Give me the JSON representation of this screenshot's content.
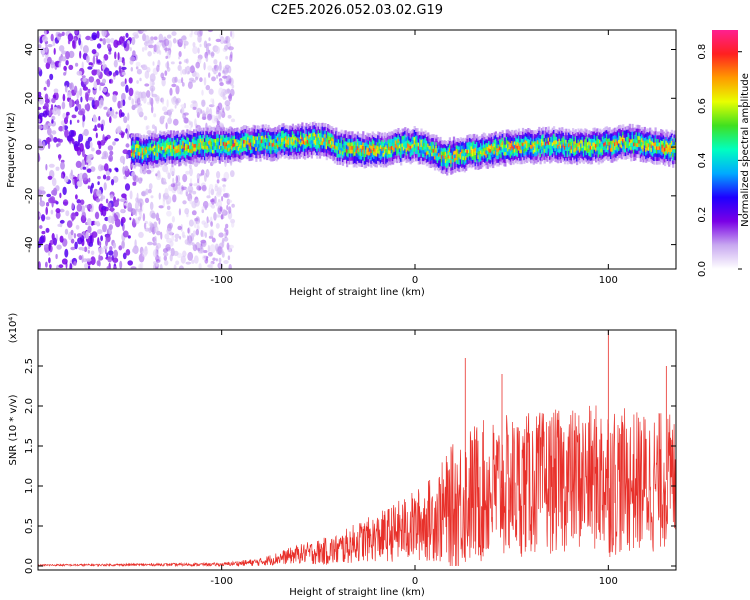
{
  "chart_data": [
    {
      "type": "heatmap",
      "title": "C2E5.2026.052.03.02.G19",
      "xlabel": "Height of straight line (km)",
      "ylabel": "Frequency (Hz)",
      "xlim": [
        -195,
        135
      ],
      "ylim": [
        -50,
        48
      ],
      "xticks": [
        -100,
        0,
        100
      ],
      "yticks": [
        -40,
        -20,
        0,
        20,
        40
      ],
      "colorbar": {
        "label": "Normalized spectral amplitude",
        "range": [
          0.0,
          0.88
        ],
        "ticks": [
          "0.0",
          "0.2",
          "0.4",
          "0.6",
          "0.8"
        ],
        "stops": [
          "#ffffff",
          "#c8a8f0",
          "#7a00e6",
          "#1e00ff",
          "#00aaff",
          "#00ffc0",
          "#40e020",
          "#e8ff00",
          "#ff9a00",
          "#ff2020",
          "#ff2090"
        ]
      },
      "track": [
        {
          "x": -145,
          "f": -2
        },
        {
          "x": -120,
          "f": 0
        },
        {
          "x": -95,
          "f": 1
        },
        {
          "x": -70,
          "f": 2
        },
        {
          "x": -50,
          "f": 3
        },
        {
          "x": -35,
          "f": -1
        },
        {
          "x": -20,
          "f": -1
        },
        {
          "x": 0,
          "f": 1
        },
        {
          "x": 15,
          "f": -4
        },
        {
          "x": 30,
          "f": -2
        },
        {
          "x": 50,
          "f": 0
        },
        {
          "x": 70,
          "f": 1
        },
        {
          "x": 90,
          "f": 0
        },
        {
          "x": 110,
          "f": 2
        },
        {
          "x": 135,
          "f": -1
        }
      ],
      "noise_region": {
        "x_from": -195,
        "x_to": -100
      }
    },
    {
      "type": "line",
      "title": "",
      "xlabel": "Height of straight line (km)",
      "ylabel": "SNR (10 * v/v)",
      "multiplier": "(x10⁴)",
      "xlim": [
        -195,
        135
      ],
      "ylim": [
        -0.05,
        2.95
      ],
      "xticks": [
        -100,
        0,
        100
      ],
      "yticks": [
        "0.0",
        "0.5",
        "1.0",
        "1.5",
        "2.0",
        "2.5"
      ],
      "series": [
        {
          "name": "SNR",
          "color": "#e8302a",
          "envelope": {
            "x": [
              -195,
              -100,
              -80,
              -60,
              -40,
              -30,
              -20,
              0,
              10,
              20,
              30,
              50,
              70,
              90,
              100,
              110,
              125,
              135
            ],
            "base": [
              0.01,
              0.02,
              0.05,
              0.15,
              0.2,
              0.3,
              0.35,
              0.5,
              0.6,
              0.75,
              0.9,
              1.0,
              1.05,
              1.1,
              1.1,
              1.05,
              1.05,
              1.1
            ],
            "amp": [
              0.01,
              0.02,
              0.05,
              0.12,
              0.2,
              0.25,
              0.3,
              0.45,
              0.55,
              0.8,
              0.9,
              0.9,
              0.9,
              0.9,
              1.0,
              0.9,
              0.9,
              0.8
            ]
          },
          "peaks": [
            {
              "x": 26,
              "y": 2.6
            },
            {
              "x": 45,
              "y": 2.4
            },
            {
              "x": 100,
              "y": 2.95
            },
            {
              "x": 130,
              "y": 2.5
            }
          ]
        }
      ]
    }
  ]
}
